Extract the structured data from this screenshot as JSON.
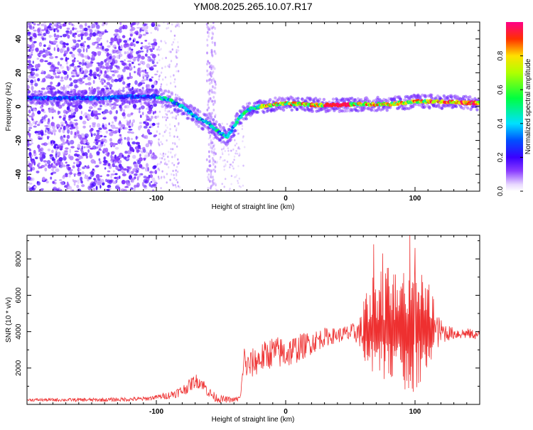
{
  "title": "YM08.2025.265.10.07.R17",
  "chart_data": [
    {
      "type": "heatmap",
      "title": "",
      "xlabel": "Height of straight line (km)",
      "ylabel": "Frequency (Hz)",
      "xlim": [
        -200,
        150
      ],
      "ylim": [
        -50,
        50
      ],
      "xticks": [
        -100,
        0,
        100
      ],
      "yticks": [
        -40,
        -20,
        0,
        20,
        40
      ],
      "xtick_labels": [
        "-100",
        "0",
        "100"
      ],
      "ytick_labels": [
        "-40",
        "-20",
        "0",
        "20",
        "40"
      ],
      "colorbar": {
        "label": "Normalized spectral amplitude",
        "range": [
          0,
          1
        ],
        "ticks": [
          0.0,
          0.2,
          0.4,
          0.6,
          0.8
        ],
        "tick_labels": [
          "0.0",
          "0.2",
          "0.4",
          "0.6",
          "0.8"
        ],
        "colors": [
          "#ffffff",
          "#6600ff",
          "#0000ff",
          "#00ffff",
          "#00ff00",
          "#ffff00",
          "#ff0000",
          "#ff0088"
        ]
      },
      "ridge": {
        "x": [
          -200,
          -180,
          -160,
          -140,
          -120,
          -100,
          -95,
          -90,
          -85,
          -80,
          -75,
          -70,
          -65,
          -60,
          -55,
          -50,
          -45,
          -40,
          -35,
          -30,
          -25,
          -20,
          -10,
          0,
          20,
          40,
          60,
          80,
          100,
          120,
          150
        ],
        "y": [
          5,
          5,
          5,
          5,
          6,
          6,
          5,
          4,
          2,
          0,
          -3,
          -6,
          -8,
          -10,
          -13,
          -16,
          -18,
          -12,
          -6,
          -2,
          -1,
          0,
          1,
          2,
          1,
          1,
          1.5,
          1.5,
          3,
          3,
          2
        ]
      }
    },
    {
      "type": "line",
      "title": "",
      "xlabel": "Height of straight line (km)",
      "ylabel": "SNR (10 * v/v)",
      "xlim": [
        -200,
        150
      ],
      "ylim": [
        0,
        9300
      ],
      "xticks": [
        -100,
        0,
        100
      ],
      "yticks": [
        2000,
        4000,
        6000,
        8000
      ],
      "xtick_labels": [
        "-100",
        "0",
        "100"
      ],
      "ytick_labels": [
        "2000",
        "4000",
        "6000",
        "8000"
      ],
      "line_color": "#ee3030",
      "trend": {
        "x": [
          -200,
          -140,
          -110,
          -90,
          -80,
          -75,
          -70,
          -65,
          -60,
          -55,
          -50,
          -40,
          -35,
          -32,
          -30,
          -25,
          -20,
          -10,
          0,
          10,
          20,
          30,
          40,
          50,
          60,
          70,
          80,
          90,
          100,
          110,
          120,
          130,
          140,
          150
        ],
        "y": [
          250,
          250,
          300,
          500,
          750,
          1000,
          1300,
          1200,
          700,
          400,
          280,
          250,
          350,
          2700,
          2000,
          2300,
          2500,
          2900,
          2800,
          3100,
          3400,
          3700,
          3800,
          3900,
          4000,
          4000,
          4000,
          4000,
          4000,
          4000,
          4000,
          3900,
          3900,
          3800
        ]
      },
      "noise": {
        "x": [
          -200,
          -100,
          -70,
          -40,
          -34,
          -30,
          0,
          40,
          55,
          62,
          70,
          100,
          120,
          128,
          150
        ],
        "amplitude": [
          80,
          120,
          400,
          120,
          200,
          800,
          900,
          400,
          600,
          1400,
          2200,
          2800,
          700,
          350,
          250
        ]
      },
      "peaks": [
        {
          "x": 96,
          "y": 9300
        },
        {
          "x": 68,
          "y": 8800
        },
        {
          "x": 75,
          "y": 8300
        },
        {
          "x": 100,
          "y": 8600
        }
      ]
    }
  ]
}
